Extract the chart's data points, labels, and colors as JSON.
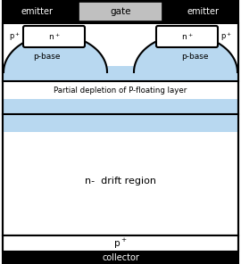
{
  "bg_color": "#ffffff",
  "border_color": "#000000",
  "depl_color": "#b8d8f0",
  "gate_fill": "#c0c0c0",
  "title_emitter": "emitter",
  "title_gate": "gate",
  "title_collector": "collector",
  "label_pbase": "p-base",
  "label_ndrift": "n-  drift region",
  "label_partial": "Partial depletion of P-floating layer",
  "label_pcollector": "p+",
  "label_nplus": "n+",
  "label_pplus": "p+",
  "fig_width": 2.7,
  "fig_height": 2.96,
  "outer_lw": 1.5
}
